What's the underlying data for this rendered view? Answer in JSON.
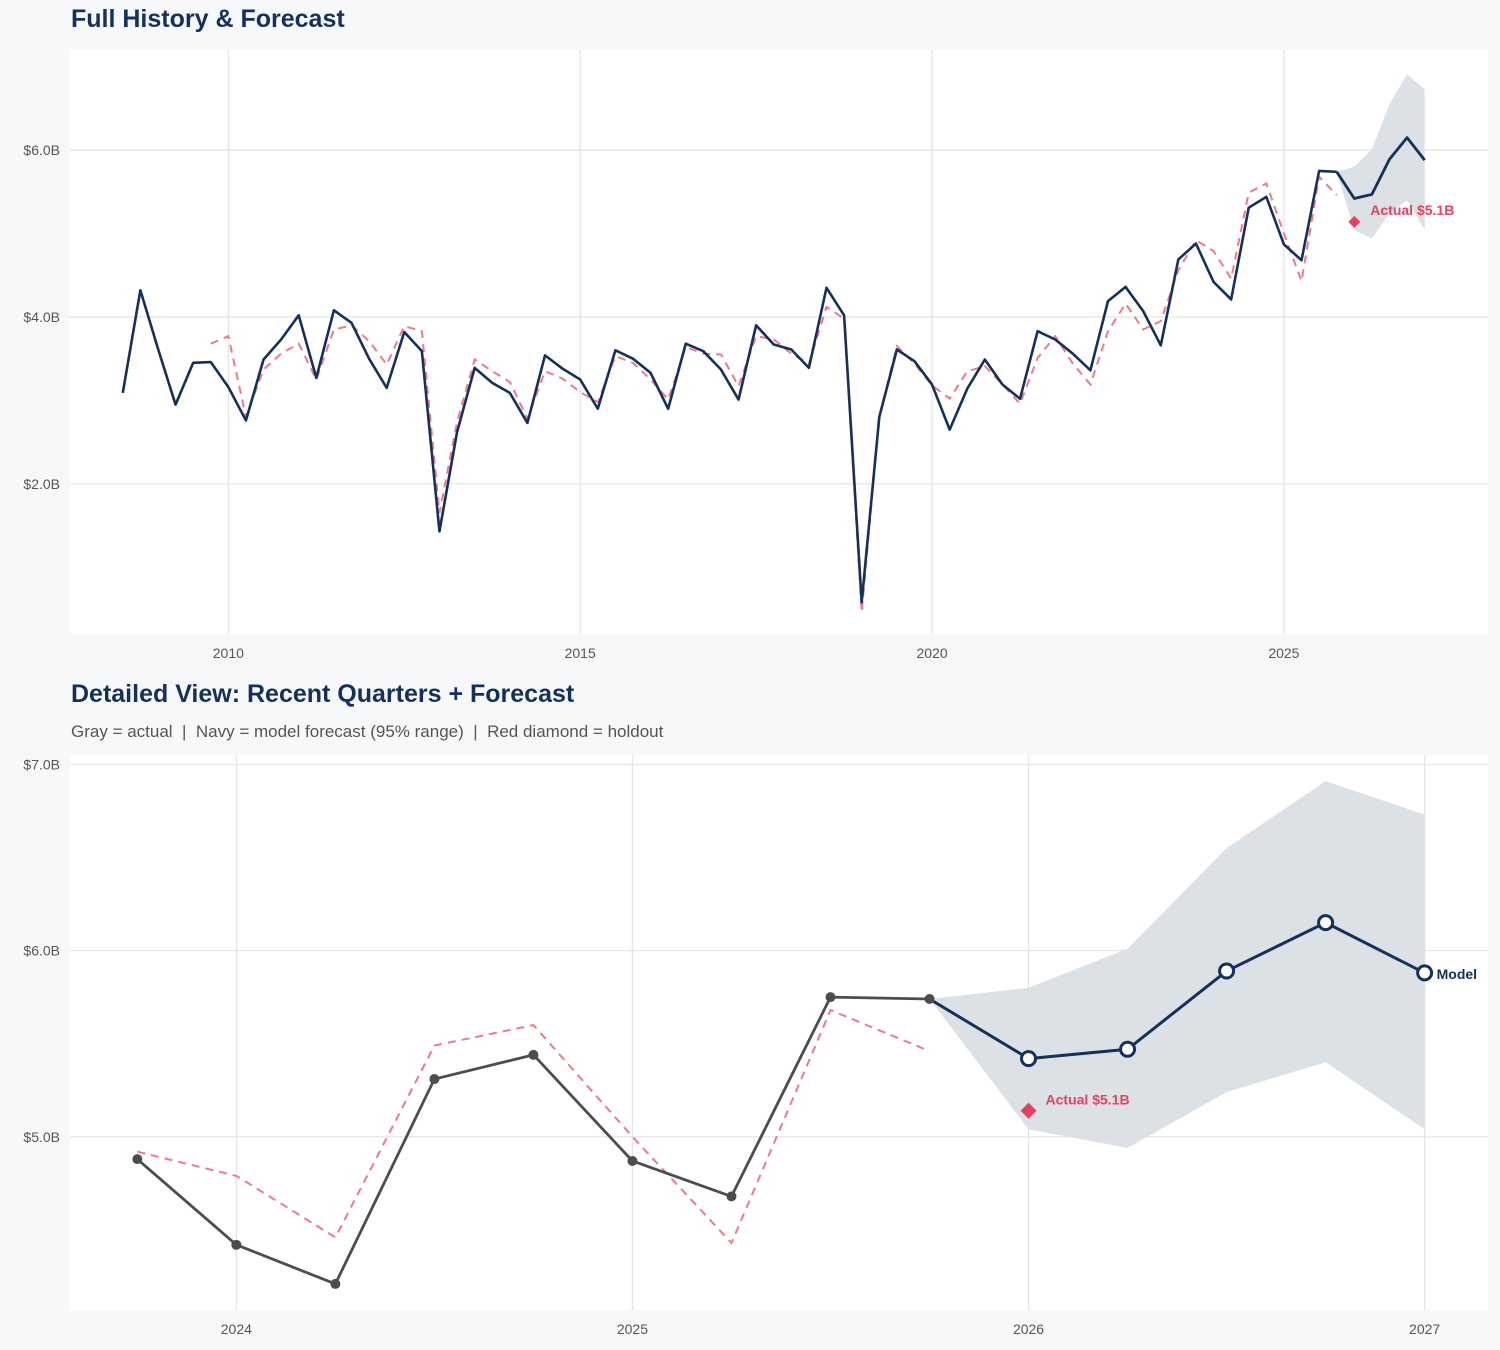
{
  "colors": {
    "navy": "#13315c",
    "actual_gray": "#4d4d4d",
    "fitted_red": "#ef7a8c",
    "holdout_red": "#e8415f",
    "band": "#dadfe5",
    "grid": "#e3e3e3",
    "plot_bg": "#ffffff",
    "page_bg": "#f7f8fa"
  },
  "top": {
    "title": "Full History & Forecast"
  },
  "bottom": {
    "title": "Detailed View: Recent Quarters + Forecast",
    "subtitle": "Gray = actual  |  Navy = model forecast (95% range)  |  Red diamond = holdout"
  },
  "chart_data": [
    {
      "type": "line",
      "title": "Full History & Forecast",
      "xlim": [
        2007.75,
        2027.9
      ],
      "ylim": [
        0.2,
        7.2
      ],
      "x_ticks": [
        2010,
        2015,
        2020,
        2025
      ],
      "x_tick_labels": [
        "2010",
        "2015",
        "2020",
        "2025"
      ],
      "y_ticks": [
        2,
        4,
        6
      ],
      "y_tick_labels": [
        "$2.0B",
        "$4.0B",
        "$6.0B"
      ],
      "grid": true,
      "actual": {
        "x": [
          2008.5,
          2008.75,
          2009,
          2009.25,
          2009.5,
          2009.75,
          2010,
          2010.25,
          2010.5,
          2010.75,
          2011,
          2011.25,
          2011.5,
          2011.75,
          2012,
          2012.25,
          2012.5,
          2012.75,
          2013,
          2013.25,
          2013.5,
          2013.75,
          2014,
          2014.25,
          2014.5,
          2014.75,
          2015,
          2015.25,
          2015.5,
          2015.75,
          2016,
          2016.25,
          2016.5,
          2016.75,
          2017,
          2017.25,
          2017.5,
          2017.75,
          2018,
          2018.25,
          2018.5,
          2018.75,
          2019,
          2019.25,
          2019.5,
          2019.75,
          2020,
          2020.25,
          2020.5,
          2020.75,
          2021,
          2021.25,
          2021.5,
          2021.75,
          2022,
          2022.25,
          2022.5,
          2022.75,
          2023,
          2023.25,
          2023.5,
          2023.75,
          2024,
          2024.25,
          2024.5,
          2024.75,
          2025,
          2025.25,
          2025.5,
          2025.75
        ],
        "y": [
          3.09,
          4.32,
          3.62,
          2.95,
          3.45,
          3.46,
          3.16,
          2.76,
          3.49,
          3.73,
          4.02,
          3.27,
          4.08,
          3.93,
          3.5,
          3.15,
          3.82,
          3.59,
          1.43,
          2.62,
          3.39,
          3.21,
          3.09,
          2.73,
          3.54,
          3.38,
          3.25,
          2.9,
          3.6,
          3.5,
          3.33,
          2.9,
          3.68,
          3.59,
          3.37,
          3.01,
          3.9,
          3.67,
          3.61,
          3.39,
          4.35,
          4.02,
          0.58,
          2.8,
          3.61,
          3.47,
          3.19,
          2.65,
          3.14,
          3.49,
          3.19,
          3.02,
          3.83,
          3.73,
          3.56,
          3.36,
          4.19,
          4.36,
          4.07,
          3.66,
          4.69,
          4.88,
          4.42,
          4.21,
          5.31,
          5.44,
          4.87,
          4.68,
          5.75,
          5.74
        ]
      },
      "fitted": {
        "x": [
          2009.75,
          2010,
          2010.25,
          2010.5,
          2010.75,
          2011,
          2011.25,
          2011.5,
          2011.75,
          2012,
          2012.25,
          2012.5,
          2012.75,
          2013,
          2013.25,
          2013.5,
          2013.75,
          2014,
          2014.25,
          2014.5,
          2014.75,
          2015,
          2015.25,
          2015.5,
          2015.75,
          2016,
          2016.25,
          2016.5,
          2016.75,
          2017,
          2017.25,
          2017.5,
          2017.75,
          2018,
          2018.25,
          2018.5,
          2018.75,
          2019,
          2019.25,
          2019.5,
          2019.75,
          2020,
          2020.25,
          2020.5,
          2020.75,
          2021,
          2021.25,
          2021.5,
          2021.75,
          2022,
          2022.25,
          2022.5,
          2022.75,
          2023,
          2023.25,
          2023.5,
          2023.75,
          2024,
          2024.25,
          2024.5,
          2024.75,
          2025,
          2025.25,
          2025.5,
          2025.75
        ],
        "y": [
          3.68,
          3.77,
          2.8,
          3.37,
          3.56,
          3.68,
          3.25,
          3.85,
          3.9,
          3.71,
          3.43,
          3.89,
          3.83,
          1.65,
          2.74,
          3.49,
          3.35,
          3.22,
          2.78,
          3.35,
          3.26,
          3.1,
          2.98,
          3.53,
          3.45,
          3.25,
          3.01,
          3.64,
          3.56,
          3.55,
          3.17,
          3.77,
          3.73,
          3.56,
          3.44,
          4.12,
          3.98,
          0.46,
          2.81,
          3.65,
          3.44,
          3.18,
          3.02,
          3.35,
          3.41,
          3.19,
          2.96,
          3.51,
          3.77,
          3.44,
          3.19,
          3.83,
          4.16,
          3.85,
          3.95,
          4.56,
          4.92,
          4.79,
          4.46,
          5.49,
          5.6,
          5.0,
          4.43,
          5.68,
          5.46
        ]
      },
      "forecast": {
        "x": [
          2025.75,
          2026,
          2026.25,
          2026.5,
          2026.75,
          2027
        ],
        "y": [
          5.74,
          5.42,
          5.47,
          5.89,
          6.15,
          5.88
        ],
        "lower": [
          5.74,
          5.04,
          4.94,
          5.24,
          5.4,
          5.04
        ],
        "upper": [
          5.74,
          5.8,
          6.01,
          6.55,
          6.91,
          6.73
        ]
      },
      "holdout": {
        "x": 2026,
        "y": 5.14,
        "label": "Actual $5.1B"
      }
    },
    {
      "type": "line",
      "title": "Detailed View: Recent Quarters + Forecast",
      "subtitle": "Gray = actual  |  Navy = model forecast (95% range)  |  Red diamond = holdout",
      "xlim": [
        2023.58,
        2027.16
      ],
      "ylim": [
        4.07,
        7.05
      ],
      "x_ticks": [
        2024,
        2025,
        2026,
        2027
      ],
      "x_tick_labels": [
        "2024",
        "2025",
        "2026",
        "2027"
      ],
      "y_ticks": [
        5,
        6,
        7
      ],
      "y_tick_labels": [
        "$5.0B",
        "$6.0B",
        "$7.0B"
      ],
      "grid": true,
      "actual": {
        "x": [
          2023.75,
          2024,
          2024.25,
          2024.5,
          2024.75,
          2025,
          2025.25,
          2025.5,
          2025.75
        ],
        "y": [
          4.88,
          4.42,
          4.21,
          5.31,
          5.44,
          4.87,
          4.68,
          5.75,
          5.74
        ]
      },
      "fitted": {
        "x": [
          2023.75,
          2024,
          2024.25,
          2024.5,
          2024.75,
          2025,
          2025.25,
          2025.5,
          2025.75
        ],
        "y": [
          4.92,
          4.79,
          4.46,
          5.49,
          5.6,
          5.0,
          4.43,
          5.68,
          5.46
        ]
      },
      "forecast": {
        "x": [
          2025.75,
          2026,
          2026.25,
          2026.5,
          2026.75,
          2027
        ],
        "y": [
          5.74,
          5.42,
          5.47,
          5.89,
          6.15,
          5.88
        ],
        "lower": [
          5.74,
          5.04,
          4.94,
          5.24,
          5.4,
          5.04
        ],
        "upper": [
          5.74,
          5.8,
          6.01,
          6.55,
          6.91,
          6.73
        ],
        "label": "Model"
      },
      "holdout": {
        "x": 2026,
        "y": 5.14,
        "label": "Actual $5.1B"
      }
    }
  ]
}
